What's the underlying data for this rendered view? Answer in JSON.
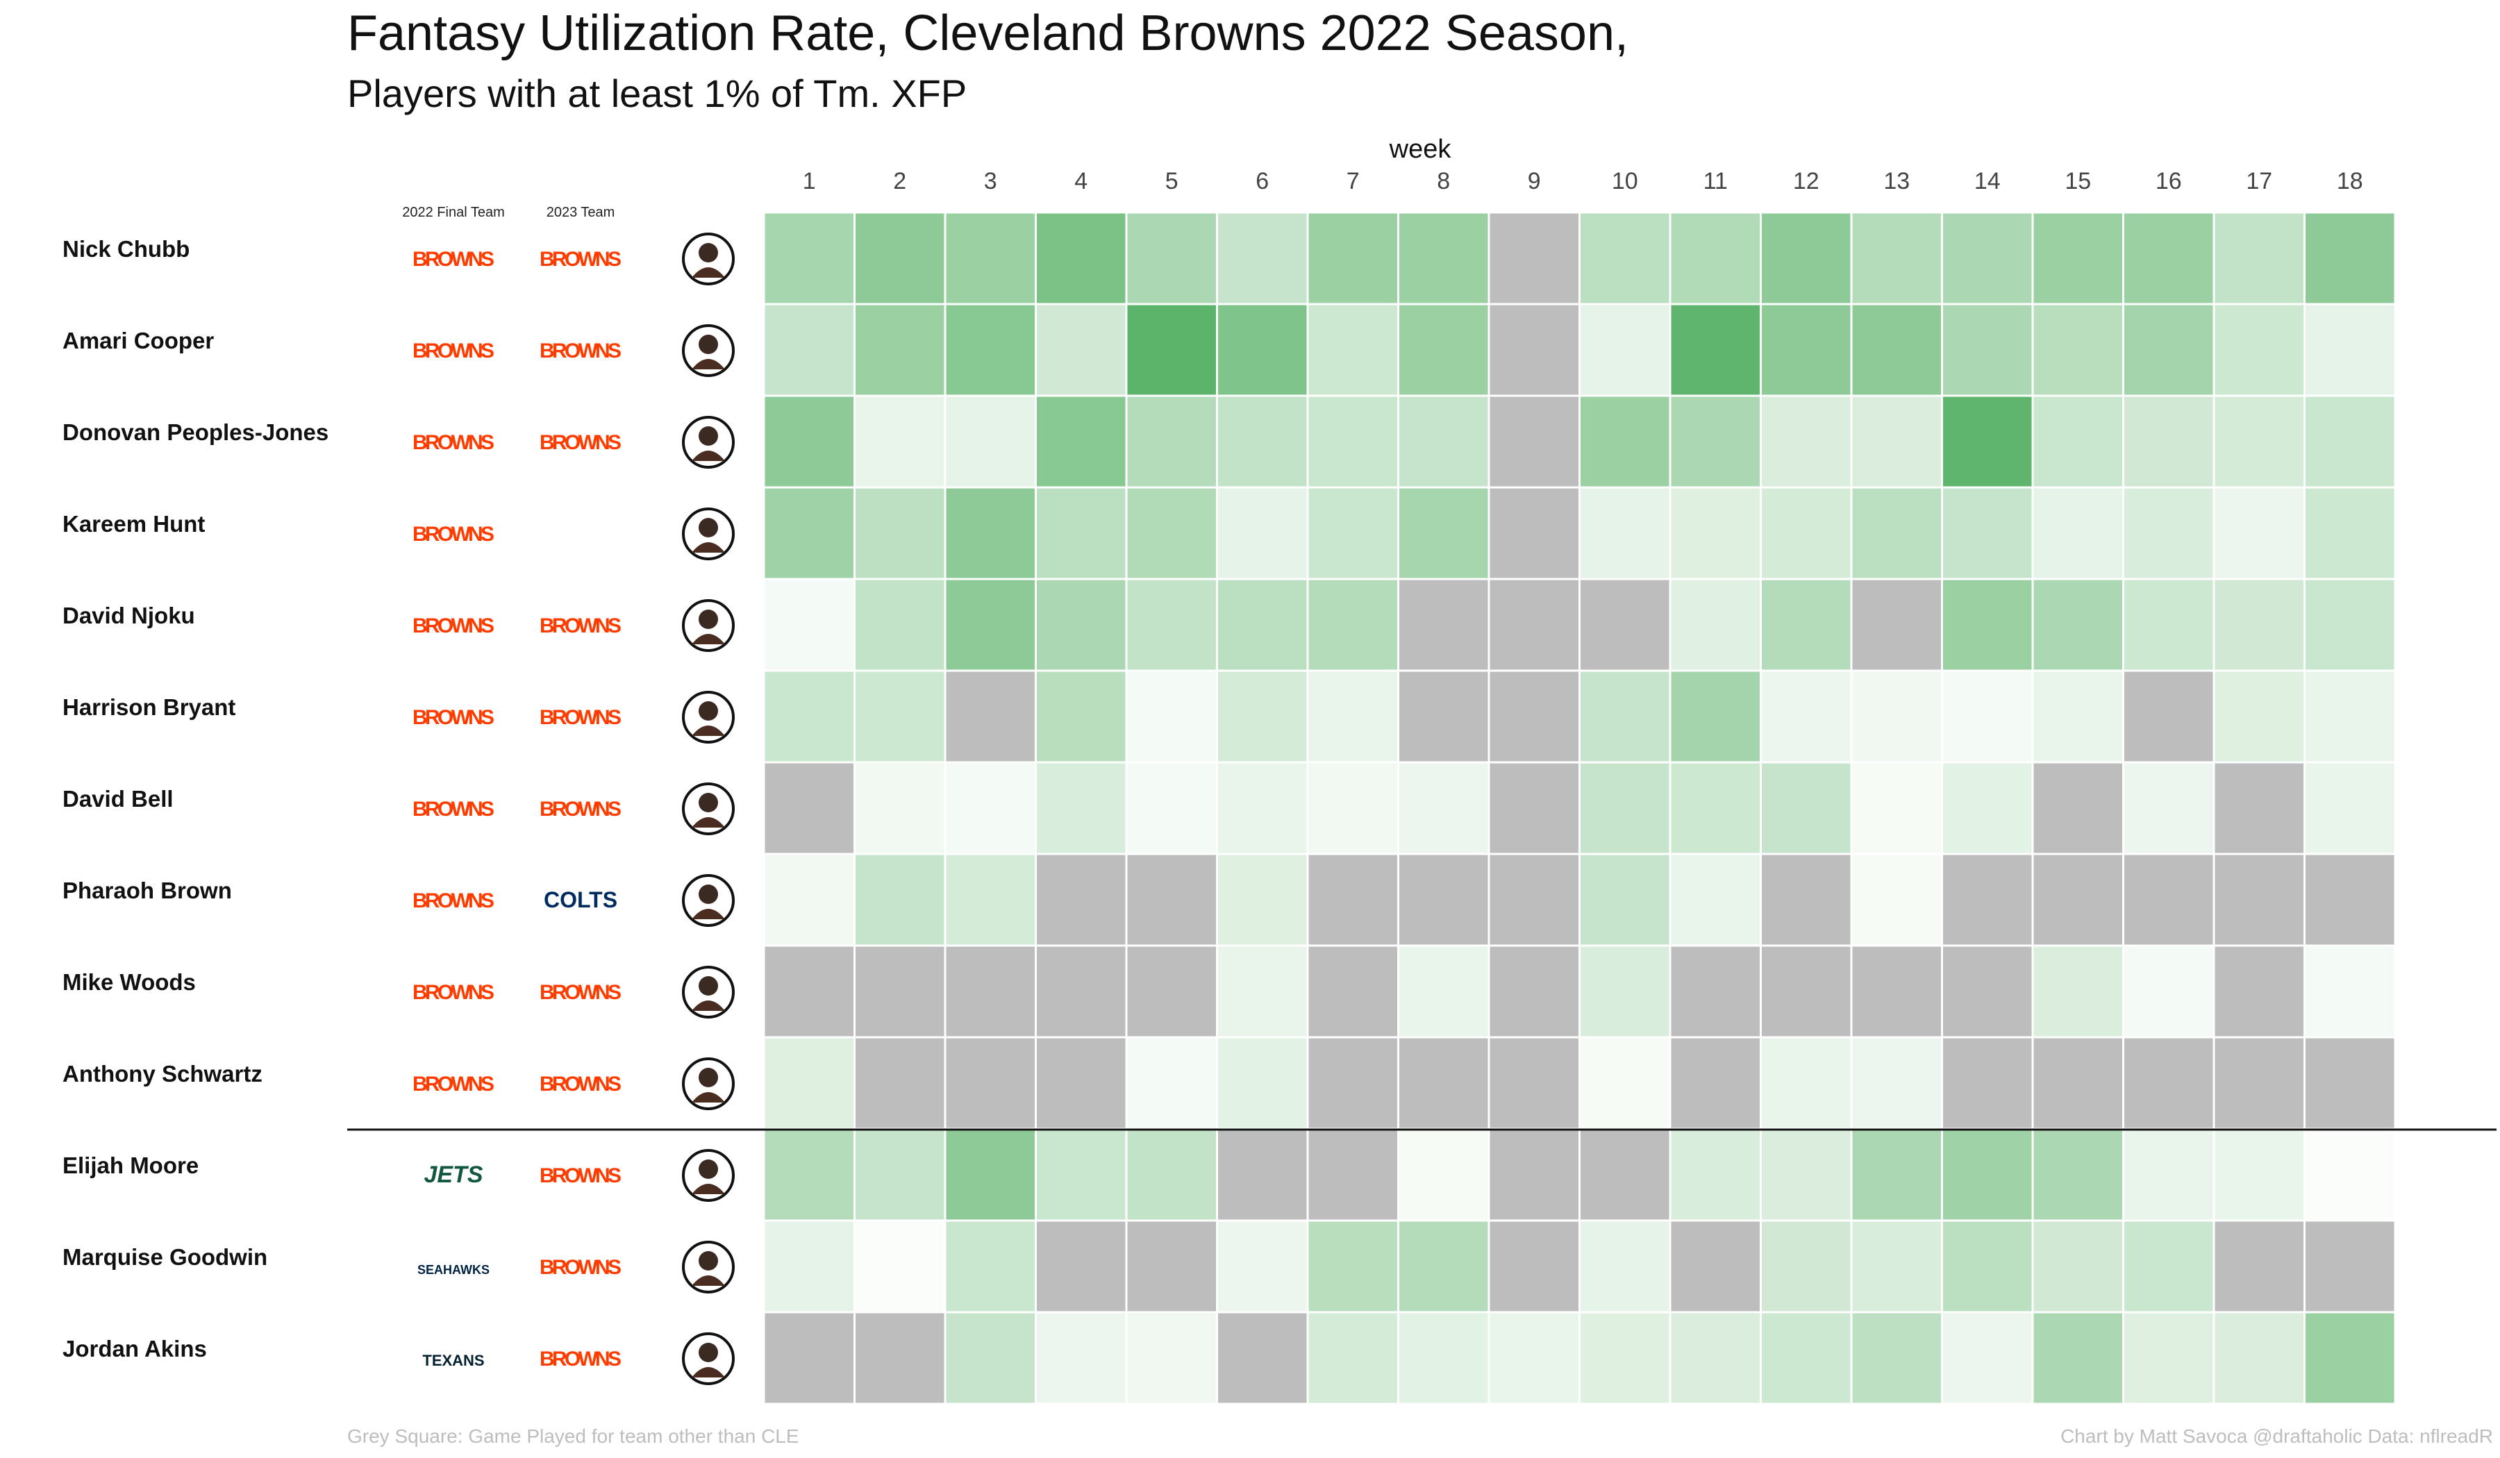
{
  "chart_data": {
    "type": "heatmap",
    "title": "Fantasy Utilization Rate, Cleveland Browns 2022 Season,",
    "subtitle": "Players with at least 1% of Tm. XFP",
    "xlabel": "week",
    "weeks": [
      "1",
      "2",
      "3",
      "4",
      "5",
      "6",
      "7",
      "8",
      "9",
      "10",
      "11",
      "12",
      "13",
      "14",
      "15",
      "16",
      "17",
      "18"
    ],
    "column_headers": {
      "final_team": "2022 Final Team",
      "team_2023": "2023 Team"
    },
    "colors": {
      "low": "#fbfdfb",
      "high": "#4aab5a",
      "grey": "#bdbdbd",
      "divider": "#111111"
    },
    "footer_left": "Grey Square: Game Played for team other than CLE",
    "footer_right": "Chart by Matt Savoca    @draftaholic    Data: nflreadR",
    "players": [
      {
        "name": "Nick Chubb",
        "final_team": "BROWNS",
        "team_2023": "BROWNS",
        "values": [
          0.48,
          0.62,
          0.55,
          0.72,
          0.45,
          0.3,
          0.55,
          0.55,
          null,
          0.36,
          0.42,
          0.62,
          0.4,
          0.45,
          0.55,
          0.55,
          0.32,
          0.62
        ]
      },
      {
        "name": "Amari Cooper",
        "final_team": "BROWNS",
        "team_2023": "BROWNS",
        "values": [
          0.3,
          0.55,
          0.65,
          0.24,
          0.9,
          0.7,
          0.26,
          0.55,
          null,
          0.12,
          0.88,
          0.62,
          0.62,
          0.45,
          0.38,
          0.5,
          0.26,
          0.12
        ]
      },
      {
        "name": "Donovan Peoples-Jones",
        "final_team": "BROWNS",
        "team_2023": "BROWNS",
        "values": [
          0.62,
          0.1,
          0.12,
          0.65,
          0.4,
          0.32,
          0.28,
          0.3,
          null,
          0.55,
          0.45,
          0.18,
          0.18,
          0.88,
          0.28,
          0.24,
          0.22,
          0.28
        ]
      },
      {
        "name": "Kareem Hunt",
        "final_team": "BROWNS",
        "team_2023": "",
        "values": [
          0.52,
          0.35,
          0.62,
          0.36,
          0.42,
          0.12,
          0.28,
          0.48,
          null,
          0.12,
          0.16,
          0.22,
          0.36,
          0.3,
          0.12,
          0.2,
          0.08,
          0.26
        ]
      },
      {
        "name": "David Njoku",
        "final_team": "BROWNS",
        "team_2023": "BROWNS",
        "values": [
          0.04,
          0.32,
          0.62,
          0.45,
          0.32,
          0.36,
          0.4,
          null,
          null,
          null,
          0.15,
          0.4,
          null,
          0.55,
          0.45,
          0.26,
          0.24,
          0.28
        ]
      },
      {
        "name": "Harrison Bryant",
        "final_team": "BROWNS",
        "team_2023": "BROWNS",
        "values": [
          0.28,
          0.26,
          null,
          0.38,
          0.04,
          0.22,
          0.1,
          null,
          null,
          0.3,
          0.5,
          0.08,
          0.06,
          0.04,
          0.1,
          null,
          0.16,
          0.1
        ]
      },
      {
        "name": "David Bell",
        "final_team": "BROWNS",
        "team_2023": "BROWNS",
        "values": [
          null,
          0.05,
          0.04,
          0.2,
          0.04,
          0.1,
          0.05,
          0.08,
          null,
          0.3,
          0.26,
          0.3,
          0.03,
          0.14,
          null,
          0.08,
          null,
          0.1
        ]
      },
      {
        "name": "Pharaoh Brown",
        "final_team": "BROWNS",
        "team_2023": "COLTS",
        "values": [
          0.05,
          0.3,
          0.22,
          null,
          null,
          0.16,
          null,
          null,
          null,
          0.3,
          0.1,
          null,
          0.03,
          null,
          null,
          null,
          null,
          null
        ]
      },
      {
        "name": "Mike Woods",
        "final_team": "BROWNS",
        "team_2023": "BROWNS",
        "values": [
          null,
          null,
          null,
          null,
          null,
          0.1,
          null,
          0.1,
          null,
          0.2,
          null,
          null,
          null,
          null,
          0.18,
          0.04,
          null,
          0.04
        ]
      },
      {
        "name": "Anthony Schwartz",
        "final_team": "BROWNS",
        "team_2023": "BROWNS",
        "values": [
          0.16,
          null,
          null,
          null,
          0.04,
          0.14,
          null,
          null,
          null,
          0.03,
          null,
          0.1,
          0.08,
          null,
          null,
          null,
          null,
          null
        ]
      },
      {
        "name": "Elijah Moore",
        "final_team": "JETS",
        "team_2023": "BROWNS",
        "values": [
          0.4,
          0.3,
          0.62,
          0.28,
          0.32,
          null,
          null,
          0.03,
          null,
          null,
          0.2,
          0.18,
          0.45,
          0.52,
          0.45,
          0.1,
          0.1,
          0.0
        ]
      },
      {
        "name": "Marquise Goodwin",
        "final_team": "SEAHAWKS",
        "team_2023": "BROWNS",
        "values": [
          0.12,
          0.0,
          0.28,
          null,
          null,
          0.08,
          0.38,
          0.4,
          null,
          0.12,
          null,
          0.24,
          0.2,
          0.36,
          0.24,
          0.28,
          null,
          null
        ]
      },
      {
        "name": "Jordan Akins",
        "final_team": "TEXANS",
        "team_2023": "BROWNS",
        "values": [
          null,
          null,
          0.3,
          0.08,
          0.06,
          null,
          0.22,
          0.14,
          0.1,
          0.16,
          0.18,
          0.26,
          0.35,
          0.08,
          0.45,
          0.16,
          0.18,
          0.55
        ]
      }
    ]
  }
}
